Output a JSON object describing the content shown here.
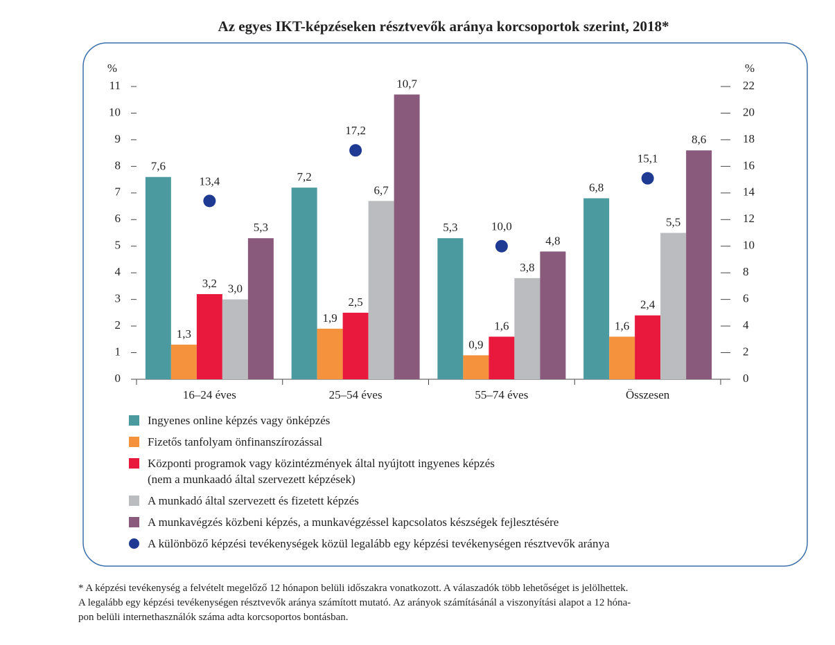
{
  "chart_data": {
    "type": "bar",
    "title": "Az egyes IKT-képzéseken résztvevők aránya korcsoportok szerint, 2018*",
    "y_label": "%",
    "y2_label": "%",
    "categories": [
      "16–24 éves",
      "25–54 éves",
      "55–74 éves",
      "Összesen"
    ],
    "series": [
      {
        "name": "Ingyenes online képzés vagy önképzés",
        "color": "#4a9a9f",
        "values": [
          7.6,
          7.2,
          5.3,
          6.8
        ],
        "value_labels": [
          "7,6",
          "7,2",
          "5,3",
          "6,8"
        ]
      },
      {
        "name": "Fizetős tanfolyam önfinanszírozással",
        "color": "#f5923e",
        "values": [
          1.3,
          1.9,
          0.9,
          1.6
        ],
        "value_labels": [
          "1,3",
          "1,9",
          "0,9",
          "1,6"
        ]
      },
      {
        "name": "Központi programok vagy közintézmények által nyújtott ingyenes képzés\n(nem a munkaadó által szervezett képzések)",
        "color": "#e8193c",
        "values": [
          3.2,
          2.5,
          1.6,
          2.4
        ],
        "value_labels": [
          "3,2",
          "2,5",
          "1,6",
          "2,4"
        ]
      },
      {
        "name": "A munkadó által szervezett és fizetett képzés",
        "color": "#bbbcc0",
        "values": [
          3.0,
          6.7,
          3.8,
          5.5
        ],
        "value_labels": [
          "3,0",
          "6,7",
          "3,8",
          "5,5"
        ]
      },
      {
        "name": "A munkavégzés közbeni képzés, a munkavégzéssel kapcsolatos készségek fejlesztésére",
        "color": "#8a5a7d",
        "values": [
          5.3,
          10.7,
          4.8,
          8.6
        ],
        "value_labels": [
          "5,3",
          "10,7",
          "4,8",
          "8,6"
        ]
      },
      {
        "name": "A különböző képzési tevékenységek közül legalább egy képzési tevékenységen résztvevők aránya",
        "color": "#1f3a93",
        "axis": "y2",
        "values": [
          13.4,
          17.2,
          10.0,
          15.1
        ],
        "value_labels": [
          "13,4",
          "17,2",
          "10,0",
          "15,1"
        ]
      }
    ],
    "ylim": [
      0,
      11
    ],
    "yticks": [
      0,
      1,
      2,
      3,
      4,
      5,
      6,
      7,
      8,
      9,
      10,
      11
    ],
    "y2lim": [
      0,
      22
    ],
    "y2ticks": [
      0,
      2,
      4,
      6,
      8,
      10,
      12,
      14,
      16,
      18,
      20,
      22
    ],
    "footnote": "* A képzési tevékenység a felvételt megelőző 12 hónapon belüli időszakra vonatkozott. A válaszadók több lehetőséget is jelölhettek.\nA legalább egy képzési tevékenységen résztvevők aránya számított mutató. Az arányok számításánál a viszonyítási alapot a 12 hóna-\npon belüli internethasználók száma adta korcsoportos bontásban."
  }
}
